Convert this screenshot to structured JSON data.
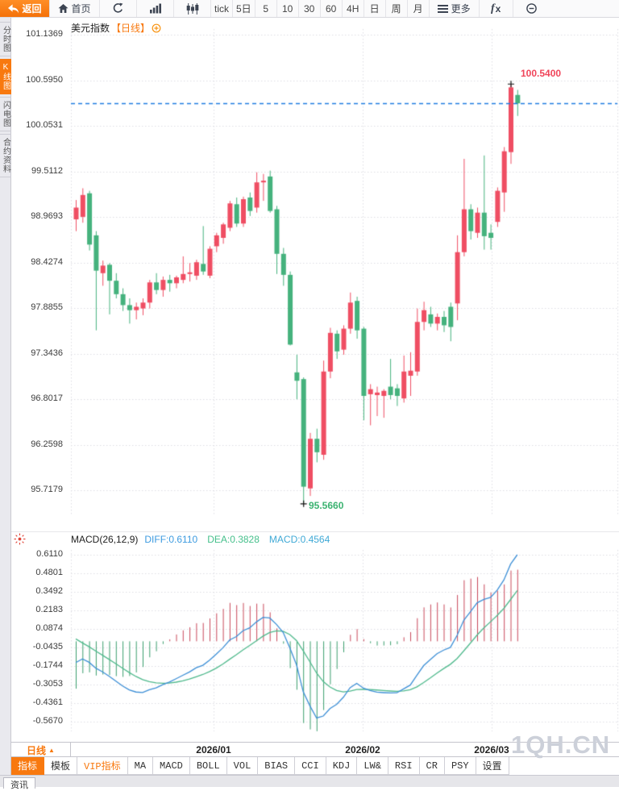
{
  "toolbar": {
    "back_label": "返回",
    "home_label": "首页",
    "periods": [
      "tick",
      "5日",
      "5",
      "10",
      "30",
      "60",
      "4H",
      "日",
      "周",
      "月"
    ],
    "more_label": "更多",
    "fx_label": "fx"
  },
  "sidebar": {
    "tabs": [
      {
        "label": "分时图",
        "active": false
      },
      {
        "label": "K线图",
        "active": true
      },
      {
        "label": "闪电图",
        "active": false
      },
      {
        "label": "合约资料",
        "active": false
      }
    ]
  },
  "chart_header": {
    "symbol": "美元指数",
    "period_tag": "【日线】"
  },
  "macd_header": {
    "name": "MACD(26,12,9)",
    "diff": "DIFF:0.6110",
    "dea": "DEA:0.3828",
    "macd": "MACD:0.4564"
  },
  "axis_strip": {
    "period_label": "日线"
  },
  "indicator_bar": {
    "tabs": [
      {
        "label": "指标",
        "style": "active"
      },
      {
        "label": "模板"
      },
      {
        "label": "VIP指标",
        "style": "vip"
      },
      {
        "label": "MA"
      },
      {
        "label": "MACD"
      },
      {
        "label": "BOLL"
      },
      {
        "label": "VOL"
      },
      {
        "label": "BIAS"
      },
      {
        "label": "CCI"
      },
      {
        "label": "KDJ"
      },
      {
        "label": "LW&"
      },
      {
        "label": "RSI"
      },
      {
        "label": "CR"
      },
      {
        "label": "PSY"
      },
      {
        "label": "设置",
        "style": "plain"
      }
    ]
  },
  "footer": {
    "tab": "资讯"
  },
  "watermark": "1QH.CN",
  "colors": {
    "accent_orange": "#f8790f",
    "candle_up": "#ef4e63",
    "candle_down": "#45b27d",
    "hist_up": "#c9485b",
    "hist_down": "#3a9e6d",
    "macd_diff_line": "#3d8fd6",
    "macd_dea_line": "#4fb98c",
    "last_price_line": "#1f7de0",
    "annotation_high": "#f0455a",
    "annotation_low": "#3cb371",
    "grid_dotted": "#dedee4"
  },
  "chart_data": {
    "type": "candlestick+macd",
    "title": "美元指数【日线】",
    "price_axis_ticks": [
      101.1369,
      100.595,
      100.0531,
      99.5112,
      98.9693,
      98.4274,
      97.8855,
      97.3436,
      96.8017,
      96.2598,
      95.7179
    ],
    "macd_axis_ticks": [
      0.611,
      0.4801,
      0.3492,
      0.2183,
      0.0874,
      -0.0435,
      -0.1744,
      -0.3053,
      -0.4361,
      -0.567
    ],
    "x_axis_labels": [
      "2026/01",
      "2026/02",
      "2026/03"
    ],
    "high_annotation": "100.5400",
    "low_annotation": "95.5660",
    "high_value": 100.54,
    "low_value": 95.566,
    "macd_readout": {
      "diff": 0.611,
      "dea": 0.3828,
      "macd": 0.4564
    },
    "candles_format": [
      "open",
      "high",
      "low",
      "close"
    ],
    "candles": [
      [
        98.94,
        99.17,
        98.8,
        99.08
      ],
      [
        98.97,
        99.31,
        98.9,
        99.23
      ],
      [
        99.25,
        99.28,
        98.57,
        98.64
      ],
      [
        98.75,
        98.8,
        97.62,
        98.33
      ],
      [
        98.3,
        98.45,
        98.15,
        98.39
      ],
      [
        98.4,
        98.42,
        97.81,
        98.21
      ],
      [
        98.21,
        98.3,
        98.0,
        98.05
      ],
      [
        98.05,
        98.12,
        97.85,
        97.92
      ],
      [
        97.92,
        98.0,
        97.7,
        97.86
      ],
      [
        97.86,
        97.95,
        97.75,
        97.9
      ],
      [
        97.88,
        98.0,
        97.8,
        97.95
      ],
      [
        97.95,
        98.22,
        97.88,
        98.19
      ],
      [
        98.19,
        98.3,
        98.05,
        98.1
      ],
      [
        98.1,
        98.26,
        98.02,
        98.22
      ],
      [
        98.22,
        98.28,
        98.08,
        98.18
      ],
      [
        98.18,
        98.27,
        98.12,
        98.25
      ],
      [
        98.22,
        98.5,
        98.18,
        98.29
      ],
      [
        98.29,
        98.42,
        98.2,
        98.31
      ],
      [
        98.27,
        98.46,
        98.22,
        98.43
      ],
      [
        98.41,
        98.86,
        98.28,
        98.32
      ],
      [
        98.27,
        98.62,
        98.24,
        98.59
      ],
      [
        98.62,
        98.78,
        98.55,
        98.75
      ],
      [
        98.72,
        98.9,
        98.65,
        98.88
      ],
      [
        98.84,
        99.16,
        98.8,
        99.13
      ],
      [
        99.12,
        99.2,
        98.85,
        98.89
      ],
      [
        98.89,
        99.21,
        98.85,
        99.18
      ],
      [
        99.2,
        99.26,
        98.98,
        99.04
      ],
      [
        99.08,
        99.5,
        99.02,
        99.38
      ],
      [
        99.38,
        99.48,
        99.16,
        99.4
      ],
      [
        99.45,
        99.52,
        99.02,
        99.04
      ],
      [
        99.06,
        99.1,
        98.29,
        98.53
      ],
      [
        98.53,
        98.6,
        98.15,
        98.28
      ],
      [
        98.28,
        98.32,
        97.44,
        97.45
      ],
      [
        97.12,
        97.33,
        96.8,
        97.02
      ],
      [
        97.04,
        97.06,
        95.566,
        95.76
      ],
      [
        95.74,
        96.4,
        95.65,
        96.33
      ],
      [
        96.33,
        96.45,
        96.05,
        96.17
      ],
      [
        96.14,
        97.26,
        96.08,
        97.13
      ],
      [
        97.13,
        97.65,
        97.05,
        97.59
      ],
      [
        97.58,
        97.62,
        97.28,
        97.37
      ],
      [
        97.39,
        97.68,
        97.33,
        97.64
      ],
      [
        97.64,
        98.07,
        97.58,
        97.95
      ],
      [
        97.97,
        98.02,
        97.52,
        97.62
      ],
      [
        97.64,
        97.66,
        96.55,
        96.84
      ],
      [
        96.86,
        96.98,
        96.49,
        96.92
      ],
      [
        96.85,
        96.95,
        96.6,
        96.88
      ],
      [
        96.84,
        96.92,
        96.58,
        96.9
      ],
      [
        96.95,
        97.28,
        96.8,
        96.85
      ],
      [
        96.93,
        96.98,
        96.72,
        96.84
      ],
      [
        96.81,
        97.32,
        96.76,
        97.13
      ],
      [
        97.08,
        97.36,
        96.84,
        97.14
      ],
      [
        97.13,
        97.88,
        97.08,
        97.72
      ],
      [
        97.72,
        97.96,
        97.62,
        97.86
      ],
      [
        97.81,
        97.9,
        97.66,
        97.7
      ],
      [
        97.7,
        97.82,
        97.62,
        97.78
      ],
      [
        97.78,
        97.85,
        97.6,
        97.68
      ],
      [
        97.9,
        97.95,
        97.49,
        97.66
      ],
      [
        97.94,
        98.75,
        97.74,
        98.55
      ],
      [
        98.55,
        99.66,
        98.5,
        99.06
      ],
      [
        99.06,
        99.12,
        98.7,
        98.8
      ],
      [
        98.78,
        99.08,
        98.72,
        99.02
      ],
      [
        99.02,
        99.7,
        98.58,
        98.74
      ],
      [
        98.78,
        98.88,
        98.58,
        98.72
      ],
      [
        98.91,
        99.32,
        98.85,
        99.28
      ],
      [
        99.26,
        99.8,
        99.03,
        99.75
      ],
      [
        99.74,
        100.54,
        99.6,
        100.51
      ],
      [
        100.42,
        100.48,
        100.17,
        100.32
      ]
    ]
  }
}
